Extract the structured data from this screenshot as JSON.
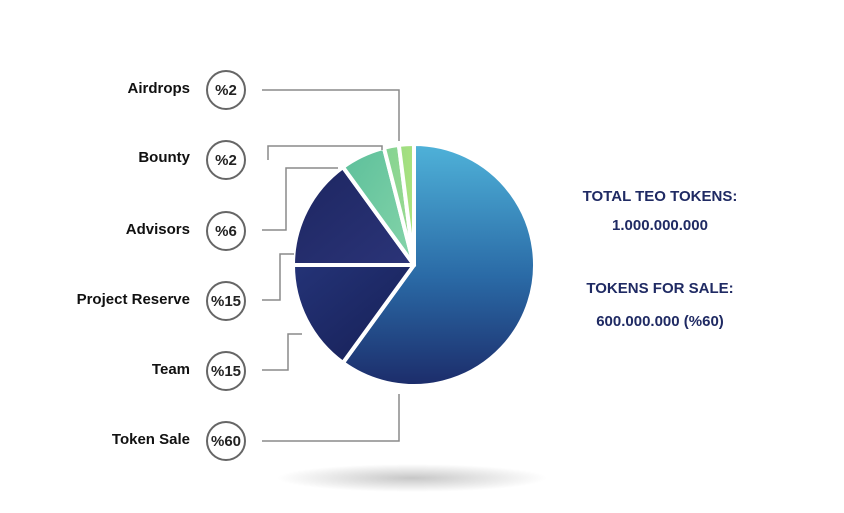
{
  "chart_data": {
    "type": "pie",
    "slices": [
      {
        "label": "Token Sale",
        "value": 60,
        "badge": "%60",
        "color": "#2c6fa8"
      },
      {
        "label": "Team",
        "value": 15,
        "badge": "%15",
        "color": "#1e2f6e"
      },
      {
        "label": "Project Reserve",
        "value": 15,
        "badge": "%15",
        "color": "#232a66"
      },
      {
        "label": "Advisors",
        "value": 6,
        "badge": "%6",
        "color": "#6ec8a0"
      },
      {
        "label": "Bounty",
        "value": 2,
        "badge": "%2",
        "color": "#8fd68a"
      },
      {
        "label": "Airdrops",
        "value": 2,
        "badge": "%2",
        "color": "#a3e07e"
      }
    ]
  },
  "info": {
    "total_label": "TOTAL TEO TOKENS:",
    "total_value": "1.000.000.000",
    "sale_label": "TOKENS FOR SALE:",
    "sale_value": "600.000.000 (%60)"
  }
}
